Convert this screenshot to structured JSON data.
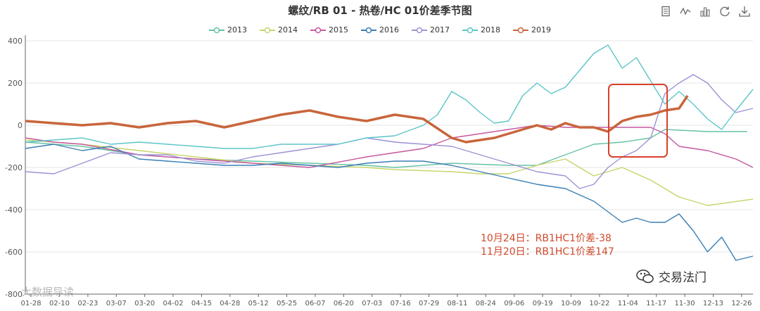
{
  "chart_data": {
    "type": "line",
    "title": "螺纹/RB 01 - 热卷/HC 01价差季节图",
    "ylim": [
      -800,
      400
    ],
    "yticks": [
      400,
      200,
      0,
      -200,
      -400,
      -600,
      -800
    ],
    "ytick_labels": [
      "400",
      "200",
      "0",
      "-200",
      "-400",
      "-600",
      "-800"
    ],
    "xtick_labels": [
      "01-28",
      "02-10",
      "02-23",
      "03-07",
      "03-20",
      "04-02",
      "04-15",
      "04-28",
      "05-12",
      "05-25",
      "06-07",
      "06-20",
      "07-03",
      "07-16",
      "07-29",
      "08-11",
      "08-24",
      "09-06",
      "09-19",
      "10-09",
      "10-22",
      "11-04",
      "11-17",
      "11-30",
      "12-13",
      "12-26"
    ],
    "x_range": [
      0,
      25.6
    ],
    "grid": true,
    "legend_position": "top",
    "series": [
      {
        "name": "2013",
        "color": "#66c2a5",
        "x": [
          0,
          2,
          4,
          6,
          8,
          10,
          12,
          13,
          15,
          17,
          18,
          19,
          20,
          21,
          22,
          22.5,
          24,
          25.4
        ],
        "y": [
          -80,
          -100,
          -140,
          -160,
          -170,
          -180,
          -190,
          -200,
          -180,
          -190,
          -190,
          -140,
          -90,
          -80,
          -60,
          -20,
          -30,
          -30
        ]
      },
      {
        "name": "2014",
        "color": "#c7d46a",
        "x": [
          0,
          2,
          4,
          6,
          8,
          10,
          12,
          13,
          15,
          16,
          17,
          18,
          19,
          20,
          21,
          22,
          23,
          24,
          25.6
        ],
        "y": [
          -70,
          -90,
          -120,
          -150,
          -180,
          -190,
          -200,
          -210,
          -220,
          -230,
          -230,
          -190,
          -160,
          -240,
          -200,
          -260,
          -340,
          -380,
          -350
        ]
      },
      {
        "name": "2015",
        "color": "#c558a0",
        "x": [
          0,
          1,
          2,
          4,
          6,
          8,
          10,
          12,
          14,
          15,
          16,
          17,
          18,
          19,
          20,
          21,
          22,
          22.5,
          23,
          24,
          25,
          25.6
        ],
        "y": [
          -60,
          -80,
          -90,
          -140,
          -160,
          -180,
          -200,
          -150,
          -110,
          -60,
          -40,
          -20,
          0,
          -10,
          -10,
          -10,
          -10,
          -40,
          -100,
          -120,
          -160,
          -200
        ]
      },
      {
        "name": "2016",
        "color": "#3a7fb5",
        "x": [
          0,
          1,
          2,
          3,
          4,
          5,
          6,
          7,
          8,
          9,
          10,
          11,
          12,
          13,
          14,
          15,
          16,
          17,
          18,
          19,
          20,
          21,
          21.5,
          22,
          22.5,
          23,
          23.5,
          24,
          24.5,
          25,
          25.6
        ],
        "y": [
          -110,
          -90,
          -120,
          -100,
          -160,
          -170,
          -180,
          -190,
          -190,
          -180,
          -190,
          -200,
          -180,
          -170,
          -170,
          -190,
          -220,
          -250,
          -280,
          -300,
          -360,
          -460,
          -440,
          -460,
          -460,
          -420,
          -500,
          -600,
          -530,
          -640,
          -620
        ]
      },
      {
        "name": "2017",
        "color": "#9f91d4",
        "x": [
          0,
          1,
          2,
          3,
          4,
          5,
          6,
          7,
          8,
          9,
          10,
          11,
          12,
          13,
          14,
          15,
          16,
          17,
          18,
          19,
          19.5,
          20,
          20.5,
          21,
          21.5,
          22,
          22.5,
          23,
          23.5,
          24,
          24.5,
          25,
          25.6
        ],
        "y": [
          -220,
          -230,
          -180,
          -130,
          -140,
          -140,
          -170,
          -180,
          -150,
          -130,
          -110,
          -90,
          -60,
          -80,
          -90,
          -100,
          -140,
          -180,
          -220,
          -240,
          -300,
          -280,
          -200,
          -150,
          -120,
          -60,
          150,
          200,
          240,
          200,
          120,
          60,
          80
        ]
      },
      {
        "name": "2018",
        "color": "#5cc5c8",
        "x": [
          0,
          1,
          2,
          3,
          4,
          5,
          6,
          7,
          8,
          9,
          10,
          11,
          12,
          13,
          14,
          14.5,
          15,
          15.5,
          16,
          16.5,
          17,
          17.5,
          18,
          18.5,
          19,
          19.5,
          20,
          20.5,
          21,
          21.5,
          22,
          22.5,
          23,
          23.5,
          24,
          24.5,
          25,
          25.6
        ],
        "y": [
          -80,
          -70,
          -60,
          -90,
          -80,
          -90,
          -100,
          -110,
          -110,
          -90,
          -90,
          -90,
          -60,
          -50,
          0,
          50,
          160,
          120,
          60,
          10,
          20,
          140,
          200,
          150,
          180,
          260,
          340,
          380,
          270,
          320,
          210,
          100,
          160,
          100,
          30,
          -20,
          70,
          170
        ]
      },
      {
        "name": "2019",
        "color": "#c8653b",
        "x": [
          0,
          1,
          2,
          3,
          4,
          5,
          6,
          7,
          8,
          9,
          10,
          11,
          12,
          13,
          14,
          15,
          15.5,
          16,
          16.5,
          17,
          17.5,
          18,
          18.5,
          19,
          19.5,
          20,
          20.5,
          21,
          21.5,
          22,
          22.5,
          23,
          23.3
        ],
        "y": [
          20,
          10,
          0,
          10,
          -10,
          10,
          20,
          -10,
          20,
          50,
          70,
          40,
          20,
          50,
          30,
          -60,
          -80,
          -70,
          -60,
          -40,
          -20,
          0,
          -20,
          10,
          -10,
          -10,
          -30,
          20,
          40,
          50,
          70,
          80,
          140
        ]
      }
    ],
    "highlight_box": true,
    "annotations": [
      "10月24日：RB1HC1价差-38",
      "11月20日：RB1HC1价差147"
    ]
  },
  "watermarks": {
    "footer": "大数据导读",
    "logo_text": "交易法门",
    "logo_icon": "wechat-icon"
  },
  "toolbox": [
    "data-view-icon",
    "line-chart-icon",
    "bar-chart-icon",
    "restore-icon",
    "download-icon"
  ]
}
